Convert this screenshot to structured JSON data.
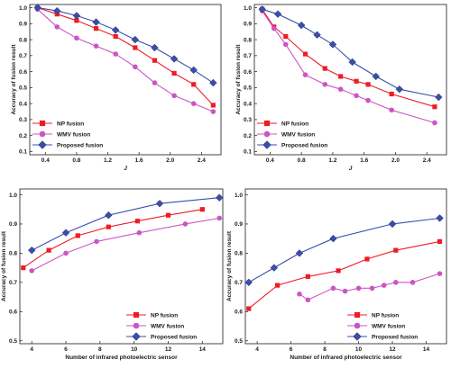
{
  "colors": {
    "np_fusion": "#ee1c25",
    "wmv_fusion": "#cc55c4",
    "proposed_fusion": "#3a4faa",
    "axis": "#1a1a1a"
  },
  "chart_data": [
    {
      "type": "line",
      "xlabel": "J",
      "ylabel": "Accuracy of fusion result",
      "xlim": [
        0.2,
        2.65
      ],
      "ylim": [
        0.08,
        1.02
      ],
      "xticks": [
        0.4,
        0.8,
        1.2,
        1.6,
        2.0,
        2.4
      ],
      "xtick_labels": [
        "0.4",
        "0.8",
        "1.2",
        "1.6",
        "2.0",
        "2.4"
      ],
      "yticks": [
        0.1,
        0.2,
        0.3,
        0.4,
        0.5,
        0.6,
        0.7,
        0.8,
        0.9,
        1.0
      ],
      "ytick_labels": [
        "0.1",
        "0.2",
        "0.3",
        "0.4",
        "0.5",
        "0.6",
        "0.7",
        "0.8",
        "0.9",
        "1.0"
      ],
      "grid": false,
      "legend_position": "bottom-left",
      "series": [
        {
          "name": "NP fusion",
          "marker": "square",
          "x": [
            0.3,
            0.55,
            0.8,
            1.05,
            1.3,
            1.55,
            1.8,
            2.05,
            2.3,
            2.55
          ],
          "y": [
            1.0,
            0.96,
            0.92,
            0.87,
            0.82,
            0.75,
            0.67,
            0.59,
            0.52,
            0.39
          ]
        },
        {
          "name": "WMV fusion",
          "marker": "circle",
          "x": [
            0.3,
            0.55,
            0.8,
            1.05,
            1.3,
            1.55,
            1.8,
            2.05,
            2.3,
            2.55
          ],
          "y": [
            0.99,
            0.88,
            0.81,
            0.76,
            0.71,
            0.63,
            0.53,
            0.45,
            0.4,
            0.35
          ]
        },
        {
          "name": "Proposed fusion",
          "marker": "diamond",
          "x": [
            0.3,
            0.55,
            0.8,
            1.05,
            1.3,
            1.55,
            1.8,
            2.05,
            2.3,
            2.55
          ],
          "y": [
            1.0,
            0.98,
            0.95,
            0.91,
            0.86,
            0.8,
            0.75,
            0.68,
            0.61,
            0.53
          ]
        }
      ]
    },
    {
      "type": "line",
      "xlabel": "J",
      "ylabel": "Accuracy of fusion result",
      "xlim": [
        0.2,
        2.65
      ],
      "ylim": [
        0.08,
        1.02
      ],
      "xticks": [
        0.4,
        0.8,
        1.2,
        1.6,
        2.0,
        2.4
      ],
      "xtick_labels": [
        "0.4",
        "0.8",
        "1.2",
        "1.6",
        "2.0",
        "2.4"
      ],
      "yticks": [
        0.1,
        0.2,
        0.3,
        0.4,
        0.5,
        0.6,
        0.7,
        0.8,
        0.9,
        1.0
      ],
      "ytick_labels": [
        "0.1",
        "0.2",
        "0.3",
        "0.4",
        "0.5",
        "0.6",
        "0.7",
        "0.8",
        "0.9",
        "1.0"
      ],
      "grid": false,
      "legend_position": "bottom-left",
      "series": [
        {
          "name": "NP fusion",
          "marker": "square",
          "x": [
            0.3,
            0.45,
            0.6,
            0.85,
            1.1,
            1.3,
            1.5,
            1.65,
            1.95,
            2.5
          ],
          "y": [
            0.99,
            0.88,
            0.82,
            0.71,
            0.62,
            0.57,
            0.54,
            0.52,
            0.46,
            0.38
          ]
        },
        {
          "name": "WMV fusion",
          "marker": "circle",
          "x": [
            0.3,
            0.45,
            0.6,
            0.85,
            1.1,
            1.3,
            1.5,
            1.65,
            1.95,
            2.5
          ],
          "y": [
            0.98,
            0.87,
            0.77,
            0.58,
            0.52,
            0.49,
            0.45,
            0.42,
            0.36,
            0.28
          ]
        },
        {
          "name": "Proposed fusion",
          "marker": "diamond",
          "x": [
            0.3,
            0.5,
            0.8,
            1.0,
            1.2,
            1.45,
            1.75,
            2.05,
            2.55
          ],
          "y": [
            0.99,
            0.96,
            0.89,
            0.83,
            0.77,
            0.66,
            0.57,
            0.49,
            0.44
          ]
        }
      ]
    },
    {
      "type": "line",
      "xlabel": "Number of infrared photoelectric sensor",
      "ylabel": "Accuracy of fusion result",
      "xlim": [
        3.3,
        15.2
      ],
      "ylim": [
        0.49,
        1.02
      ],
      "xticks": [
        4,
        6,
        8,
        10,
        12,
        14
      ],
      "xtick_labels": [
        "4",
        "6",
        "8",
        "10",
        "12",
        "14"
      ],
      "yticks": [
        0.5,
        0.6,
        0.7,
        0.8,
        0.9,
        1.0
      ],
      "ytick_labels": [
        "0.5",
        "0.6",
        "0.7",
        "0.8",
        "0.9",
        "1.0"
      ],
      "grid": false,
      "legend_position": "bottom-right",
      "series": [
        {
          "name": "NP fusion",
          "marker": "square",
          "x": [
            3.5,
            5,
            6.7,
            8.5,
            10.2,
            12,
            14
          ],
          "y": [
            0.75,
            0.81,
            0.86,
            0.89,
            0.91,
            0.93,
            0.95
          ]
        },
        {
          "name": "WMV fusion",
          "marker": "circle",
          "x": [
            4,
            6,
            7.8,
            10.3,
            13,
            15
          ],
          "y": [
            0.74,
            0.8,
            0.84,
            0.87,
            0.9,
            0.92
          ]
        },
        {
          "name": "Proposed fusion",
          "marker": "diamond",
          "x": [
            4,
            6,
            8.5,
            11.5,
            15
          ],
          "y": [
            0.81,
            0.87,
            0.93,
            0.97,
            0.99
          ]
        }
      ]
    },
    {
      "type": "line",
      "xlabel": "Number of infrared photoelectric sensor",
      "ylabel": "Accuracy of fusion result",
      "xlim": [
        3.3,
        15.2
      ],
      "ylim": [
        0.49,
        1.02
      ],
      "xticks": [
        4,
        6,
        8,
        10,
        12,
        14
      ],
      "xtick_labels": [
        "4",
        "6",
        "8",
        "10",
        "12",
        "14"
      ],
      "yticks": [
        0.5,
        0.6,
        0.7,
        0.8,
        0.9,
        1.0
      ],
      "ytick_labels": [
        "0.5",
        "0.6",
        "0.7",
        "0.8",
        "0.9",
        "1.0"
      ],
      "grid": false,
      "legend_position": "bottom-right",
      "series": [
        {
          "name": "NP fusion",
          "marker": "square",
          "x": [
            3.5,
            5.2,
            7,
            8.8,
            10.5,
            12.2,
            14.8
          ],
          "y": [
            0.61,
            0.69,
            0.72,
            0.74,
            0.78,
            0.81,
            0.84
          ]
        },
        {
          "name": "WMV fusion",
          "marker": "circle",
          "x": [
            6.5,
            7,
            8.5,
            9.2,
            10,
            10.8,
            11.5,
            12.2,
            13.2,
            14.8
          ],
          "y": [
            0.66,
            0.64,
            0.68,
            0.67,
            0.68,
            0.68,
            0.69,
            0.7,
            0.7,
            0.73
          ]
        },
        {
          "name": "Proposed fusion",
          "marker": "diamond",
          "x": [
            3.5,
            5,
            6.5,
            8.5,
            12,
            14.8
          ],
          "y": [
            0.7,
            0.75,
            0.8,
            0.85,
            0.9,
            0.92
          ]
        }
      ]
    }
  ]
}
